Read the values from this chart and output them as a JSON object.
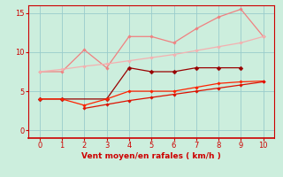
{
  "x": [
    0,
    1,
    2,
    3,
    4,
    5,
    6,
    7,
    8,
    9,
    10
  ],
  "line1_y": [
    7.5,
    7.5,
    10.3,
    8.0,
    12.0,
    12.0,
    11.2,
    13.0,
    14.5,
    15.5,
    12.0
  ],
  "line2_y": [
    7.5,
    7.8,
    8.2,
    8.5,
    8.9,
    9.3,
    9.7,
    10.2,
    10.7,
    11.2,
    12.0
  ],
  "line3_x": [
    0,
    1,
    3,
    4,
    5,
    6,
    7,
    8,
    9
  ],
  "line3_y": [
    4.0,
    4.0,
    4.0,
    8.0,
    7.5,
    7.5,
    8.0,
    8.0,
    8.0
  ],
  "line4_x": [
    0,
    1,
    2,
    3,
    4,
    5,
    6,
    7,
    8,
    9,
    10
  ],
  "line4_y": [
    4.0,
    4.0,
    3.2,
    4.0,
    5.0,
    5.0,
    5.0,
    5.5,
    6.0,
    6.2,
    6.3
  ],
  "line5_x": [
    2,
    3,
    4,
    5,
    6,
    7,
    8,
    9,
    10
  ],
  "line5_y": [
    2.8,
    3.3,
    3.8,
    4.2,
    4.6,
    5.0,
    5.4,
    5.8,
    6.2
  ],
  "color1": "#f08080",
  "color2": "#f4b0b0",
  "color3": "#990000",
  "color4": "#ff2200",
  "color5": "#dd1100",
  "bg_color": "#cceedd",
  "grid_color": "#99cccc",
  "axis_color": "#cc0000",
  "text_color": "#cc0000",
  "xlabel": "Vent moyen/en rafales ( km/h )",
  "ylim": [
    -1,
    16
  ],
  "xlim": [
    -0.5,
    10.5
  ],
  "yticks": [
    0,
    5,
    10,
    15
  ],
  "xticks": [
    0,
    1,
    2,
    3,
    4,
    5,
    6,
    7,
    8,
    9,
    10
  ],
  "marker_size_large": 2.5,
  "marker_size_small": 1.8,
  "lw": 0.9
}
